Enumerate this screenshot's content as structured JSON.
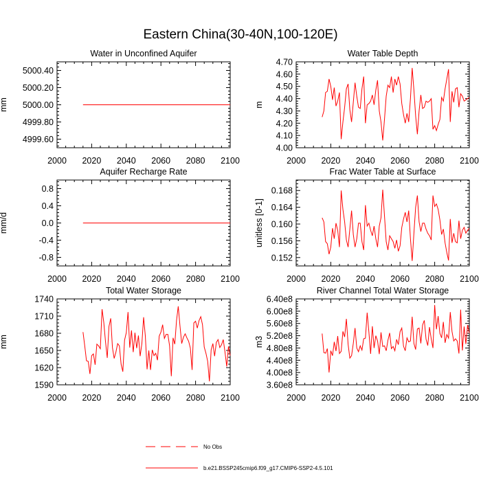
{
  "title": "Eastern China(30-40N,100-120E)",
  "colors": {
    "model": "#ff0000",
    "obs": "#ff0000",
    "axis": "#000000"
  },
  "legend": [
    {
      "label": "No Obs",
      "style": "dashed"
    },
    {
      "label": "b.e21.BSSP245cmip6.f09_g17.CMIP6-SSP2-4.5.101",
      "style": "solid"
    }
  ],
  "chart_data": [
    {
      "type": "line",
      "title": "Water in Unconfined Aquifer",
      "xlabel": "",
      "ylabel": "mm",
      "xlim": [
        2000,
        2100
      ],
      "ylim": [
        4999.5,
        5000.5
      ],
      "xticks": [
        2000,
        2020,
        2040,
        2060,
        2080,
        2100
      ],
      "yticks": [
        4999.6,
        4999.8,
        5000.0,
        5000.2,
        5000.4
      ],
      "ytick_labels": [
        "4999.60",
        "4999.80",
        "5000.00",
        "5000.20",
        "5000.40"
      ],
      "x_start": 2015,
      "series": [
        {
          "name": "b.e21.BSSP245cmip6.f09_g17.CMIP6-SSP2-4.5.101",
          "values": [
            5000.0,
            5000.0
          ]
        }
      ],
      "x": [
        2015,
        2100
      ]
    },
    {
      "type": "line",
      "title": "Water Table Depth",
      "xlabel": "",
      "ylabel": "m",
      "xlim": [
        2000,
        2100
      ],
      "ylim": [
        4.0,
        4.7
      ],
      "xticks": [
        2000,
        2020,
        2040,
        2060,
        2080,
        2100
      ],
      "yticks": [
        4.0,
        4.1,
        4.2,
        4.3,
        4.4,
        4.5,
        4.6,
        4.7
      ],
      "ytick_labels": [
        "4.00",
        "4.10",
        "4.20",
        "4.30",
        "4.40",
        "4.50",
        "4.60",
        "4.70"
      ],
      "x_start": 2015,
      "series": [
        {
          "name": "b.e21.BSSP245cmip6.f09_g17.CMIP6-SSP2-4.5.101",
          "values": [
            4.25,
            4.3,
            4.45,
            4.46,
            4.56,
            4.5,
            4.39,
            4.49,
            4.34,
            4.38,
            4.45,
            4.07,
            4.21,
            4.33,
            4.48,
            4.52,
            4.31,
            4.21,
            4.37,
            4.53,
            4.42,
            4.33,
            4.32,
            4.48,
            4.58,
            4.2,
            4.35,
            4.36,
            4.38,
            4.43,
            4.35,
            4.47,
            4.55,
            4.3,
            4.21,
            4.06,
            4.23,
            4.42,
            4.51,
            4.49,
            4.58,
            4.45,
            4.56,
            4.51,
            4.58,
            4.52,
            4.36,
            4.27,
            4.2,
            4.28,
            4.21,
            4.4,
            4.65,
            4.47,
            4.26,
            4.11,
            4.3,
            4.43,
            4.32,
            4.33,
            4.38,
            4.37,
            4.38,
            4.4,
            4.15,
            4.18,
            4.14,
            4.19,
            4.23,
            4.41,
            4.38,
            4.48,
            4.56,
            4.64,
            4.21,
            4.46,
            4.37,
            4.48,
            4.49,
            4.33,
            4.44,
            4.42,
            4.38,
            4.39,
            4.4,
            4.41
          ]
        }
      ]
    },
    {
      "type": "line",
      "title": "Aquifer Recharge Rate",
      "xlabel": "",
      "ylabel": "mm/d",
      "xlim": [
        2000,
        2100
      ],
      "ylim": [
        -1.0,
        1.0
      ],
      "xticks": [
        2000,
        2020,
        2040,
        2060,
        2080,
        2100
      ],
      "yticks": [
        -0.8,
        -0.4,
        0.0,
        0.4,
        0.8
      ],
      "ytick_labels": [
        "-0.8",
        "-0.4",
        "0.0",
        "0.4",
        "0.8"
      ],
      "x_start": 2015,
      "series": [
        {
          "name": "b.e21.BSSP245cmip6.f09_g17.CMIP6-SSP2-4.5.101",
          "values": [
            0.0,
            0.0
          ]
        }
      ],
      "x": [
        2015,
        2100
      ]
    },
    {
      "type": "line",
      "title": "Frac Water Table at Surface",
      "xlabel": "",
      "ylabel": "unitless [0-1]",
      "xlim": [
        2000,
        2100
      ],
      "ylim": [
        0.15,
        0.1705
      ],
      "xticks": [
        2000,
        2020,
        2040,
        2060,
        2080,
        2100
      ],
      "yticks": [
        0.152,
        0.156,
        0.16,
        0.164,
        0.168
      ],
      "ytick_labels": [
        "0.152",
        "0.156",
        "0.160",
        "0.164",
        "0.168"
      ],
      "x_start": 2015,
      "series": [
        {
          "name": "b.e21.BSSP245cmip6.f09_g17.CMIP6-SSP2-4.5.101",
          "values": [
            0.1615,
            0.1605,
            0.1558,
            0.1553,
            0.1528,
            0.1545,
            0.159,
            0.1565,
            0.1602,
            0.1585,
            0.1545,
            0.168,
            0.1635,
            0.1605,
            0.1562,
            0.1545,
            0.1588,
            0.1632,
            0.1575,
            0.1545,
            0.1565,
            0.1602,
            0.1602,
            0.1558,
            0.1538,
            0.1645,
            0.1595,
            0.1602,
            0.1585,
            0.1572,
            0.1595,
            0.1565,
            0.1545,
            0.1595,
            0.1615,
            0.1682,
            0.162,
            0.1558,
            0.1538,
            0.1572,
            0.1565,
            0.1558,
            0.1542,
            0.1562,
            0.1535,
            0.1548,
            0.1592,
            0.1612,
            0.1628,
            0.1605,
            0.1632,
            0.1565,
            0.1512,
            0.1578,
            0.164,
            0.1668,
            0.1605,
            0.1582,
            0.1602,
            0.1602,
            0.1588,
            0.1578,
            0.1572,
            0.1562,
            0.1668,
            0.1642,
            0.1648,
            0.1635,
            0.161,
            0.1575,
            0.1588,
            0.1555,
            0.1532,
            0.1513,
            0.1612,
            0.1555,
            0.1578,
            0.1558,
            0.1555,
            0.1608,
            0.1565,
            0.1585,
            0.1592,
            0.1578,
            0.1585,
            0.159
          ]
        }
      ]
    },
    {
      "type": "line",
      "title": "Total Water Storage",
      "xlabel": "",
      "ylabel": "mm",
      "xlim": [
        2000,
        2100
      ],
      "ylim": [
        1590,
        1740
      ],
      "xticks": [
        2000,
        2020,
        2040,
        2060,
        2080,
        2100
      ],
      "yticks": [
        1590,
        1620,
        1650,
        1680,
        1710,
        1740
      ],
      "ytick_labels": [
        "1590",
        "1620",
        "1650",
        "1680",
        "1710",
        "1740"
      ],
      "x_start": 2015,
      "series": [
        {
          "name": "b.e21.BSSP245cmip6.f09_g17.CMIP6-SSP2-4.5.101",
          "values": [
            1682,
            1658,
            1632,
            1631,
            1609,
            1641,
            1644,
            1625,
            1661,
            1658,
            1653,
            1722,
            1699,
            1665,
            1637,
            1692,
            1706,
            1655,
            1636,
            1647,
            1662,
            1658,
            1626,
            1613,
            1668,
            1681,
            1717,
            1655,
            1685,
            1647,
            1681,
            1654,
            1676,
            1640,
            1662,
            1708,
            1675,
            1617,
            1650,
            1616,
            1651,
            1641,
            1645,
            1633,
            1675,
            1682,
            1695,
            1671,
            1678,
            1678,
            1658,
            1605,
            1672,
            1661,
            1702,
            1727,
            1693,
            1662,
            1673,
            1679,
            1672,
            1666,
            1654,
            1616,
            1698,
            1701,
            1689,
            1702,
            1709,
            1695,
            1656,
            1645,
            1631,
            1596,
            1651,
            1662,
            1640,
            1664,
            1669,
            1655,
            1660,
            1669,
            1647,
            1622,
            1657,
            1641
          ]
        }
      ]
    },
    {
      "type": "line",
      "title": "River Channel Total Water Storage",
      "xlabel": "",
      "ylabel": "m3",
      "xlim": [
        2000,
        2100
      ],
      "ylim": [
        360000000,
        640000000
      ],
      "xticks": [
        2000,
        2020,
        2040,
        2060,
        2080,
        2100
      ],
      "yticks": [
        360000000,
        400000000,
        440000000,
        480000000,
        520000000,
        560000000,
        600000000,
        640000000
      ],
      "ytick_labels": [
        "3.60e8",
        "4.00e8",
        "4.40e8",
        "4.80e8",
        "5.20e8",
        "5.60e8",
        "6.00e8",
        "6.40e8"
      ],
      "x_start": 2015,
      "series": [
        {
          "name": "b.e21.BSSP245cmip6.f09_g17.CMIP6-SSP2-4.5.101",
          "values": [
            527000000,
            465000000,
            463000000,
            478000000,
            400000000,
            471000000,
            455000000,
            500000000,
            470000000,
            519000000,
            462000000,
            469000000,
            534000000,
            516000000,
            575000000,
            492000000,
            447000000,
            455000000,
            495000000,
            545000000,
            480000000,
            468000000,
            487000000,
            473000000,
            510000000,
            512000000,
            595000000,
            532000000,
            461000000,
            551000000,
            480000000,
            520000000,
            503000000,
            460000000,
            531000000,
            485000000,
            487000000,
            471000000,
            505000000,
            529000000,
            478000000,
            485000000,
            471000000,
            508000000,
            491000000,
            533000000,
            545000000,
            486000000,
            471000000,
            513000000,
            500000000,
            503000000,
            582000000,
            495000000,
            475000000,
            542000000,
            545000000,
            495000000,
            555000000,
            570000000,
            509000000,
            488000000,
            548000000,
            510000000,
            480000000,
            620000000,
            541000000,
            584000000,
            528000000,
            513000000,
            565000000,
            497000000,
            524000000,
            512000000,
            597000000,
            534000000,
            503000000,
            510000000,
            503000000,
            462000000,
            605000000,
            472000000,
            550000000,
            493000000,
            555000000,
            528000000
          ]
        }
      ]
    }
  ]
}
